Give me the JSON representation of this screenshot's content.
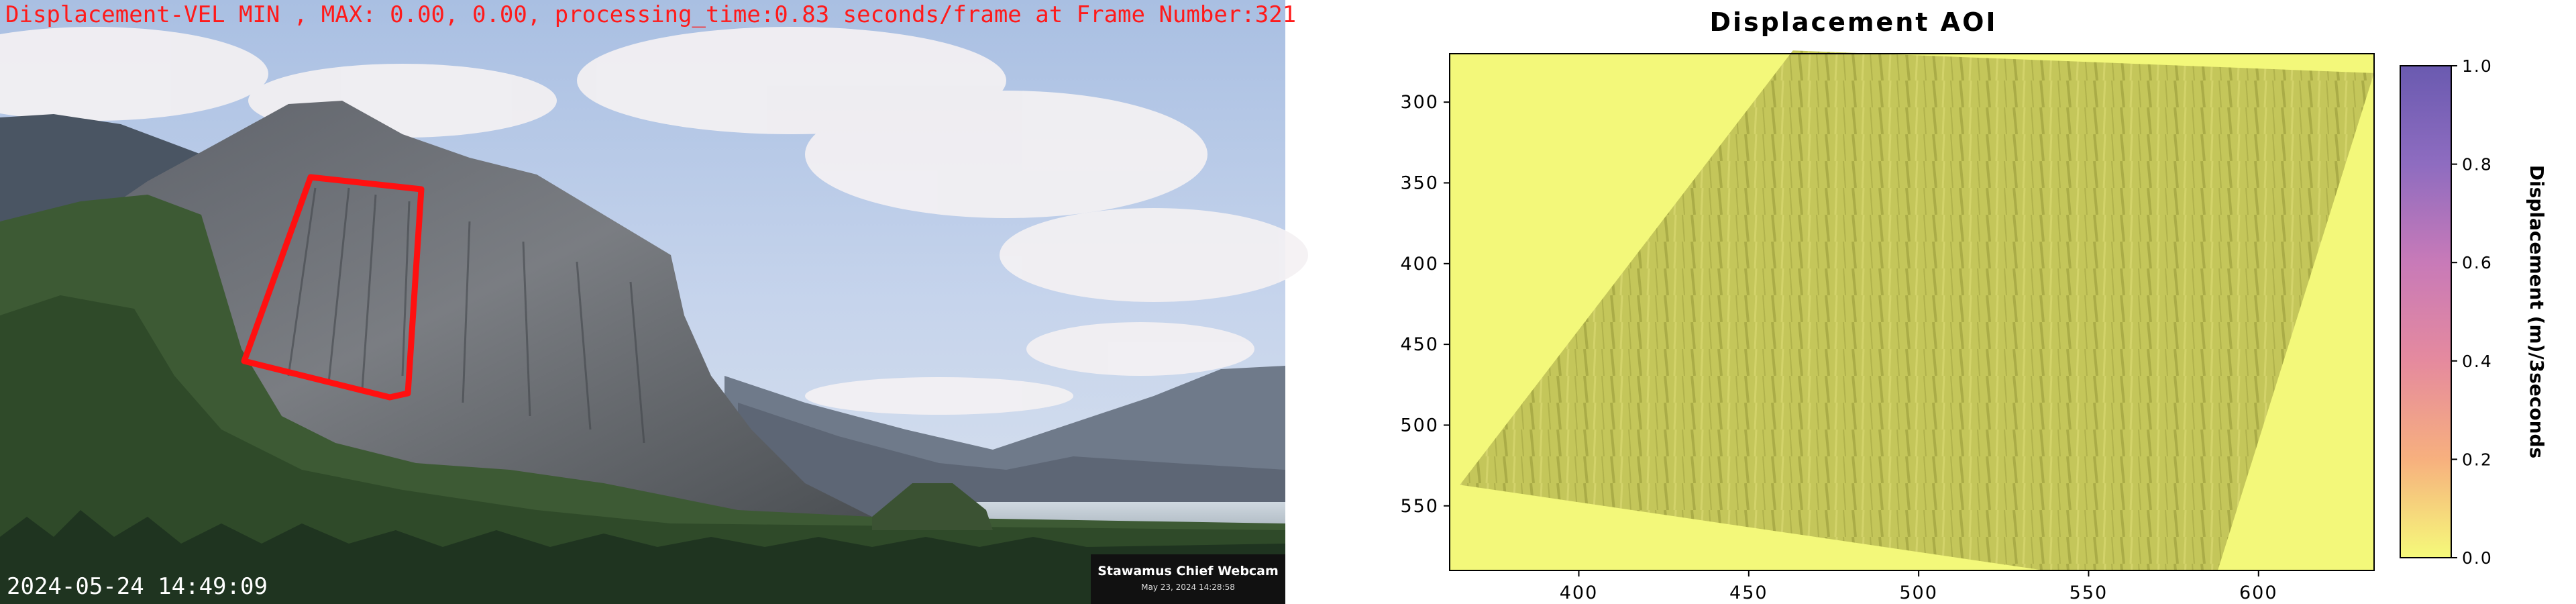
{
  "webcam": {
    "overlay_text": "Displacement-VEL MIN , MAX: 0.00, 0.00, processing_time:0.83 seconds/frame at Frame Number:321",
    "frame_timestamp": "2024-05-24 14:49:09",
    "camera_name": "Stawamus Chief Webcam",
    "camera_date": "May 23, 2024 14:28:58",
    "aoi_outline_color": "#ff1010"
  },
  "chart_data": {
    "type": "heatmap",
    "title": "Displacement AOI",
    "xlabel": "",
    "ylabel": "",
    "xlim": [
      362,
      634
    ],
    "ylim": [
      590,
      270
    ],
    "x_ticks": [
      400,
      450,
      500,
      550,
      600
    ],
    "y_ticks": [
      300,
      350,
      400,
      450,
      500,
      550
    ],
    "aoi_polygon": [
      [
        365,
        537
      ],
      [
        463,
        268
      ],
      [
        634,
        282
      ],
      [
        588,
        590
      ],
      [
        537,
        590
      ]
    ],
    "colorbar": {
      "label": "Displacement (m)/3seconds",
      "range": [
        0.0,
        1.0
      ],
      "ticks": [
        "0.0",
        "0.2",
        "0.4",
        "0.6",
        "0.8",
        "1.0"
      ],
      "colors": [
        "#f5fa7a",
        "#f7b07e",
        "#e58a9e",
        "#c87ab8",
        "#8e6cc0",
        "#6a5ab0"
      ]
    },
    "background_color": "#f3f87a",
    "values_min": 0.0,
    "values_max": 0.0
  }
}
